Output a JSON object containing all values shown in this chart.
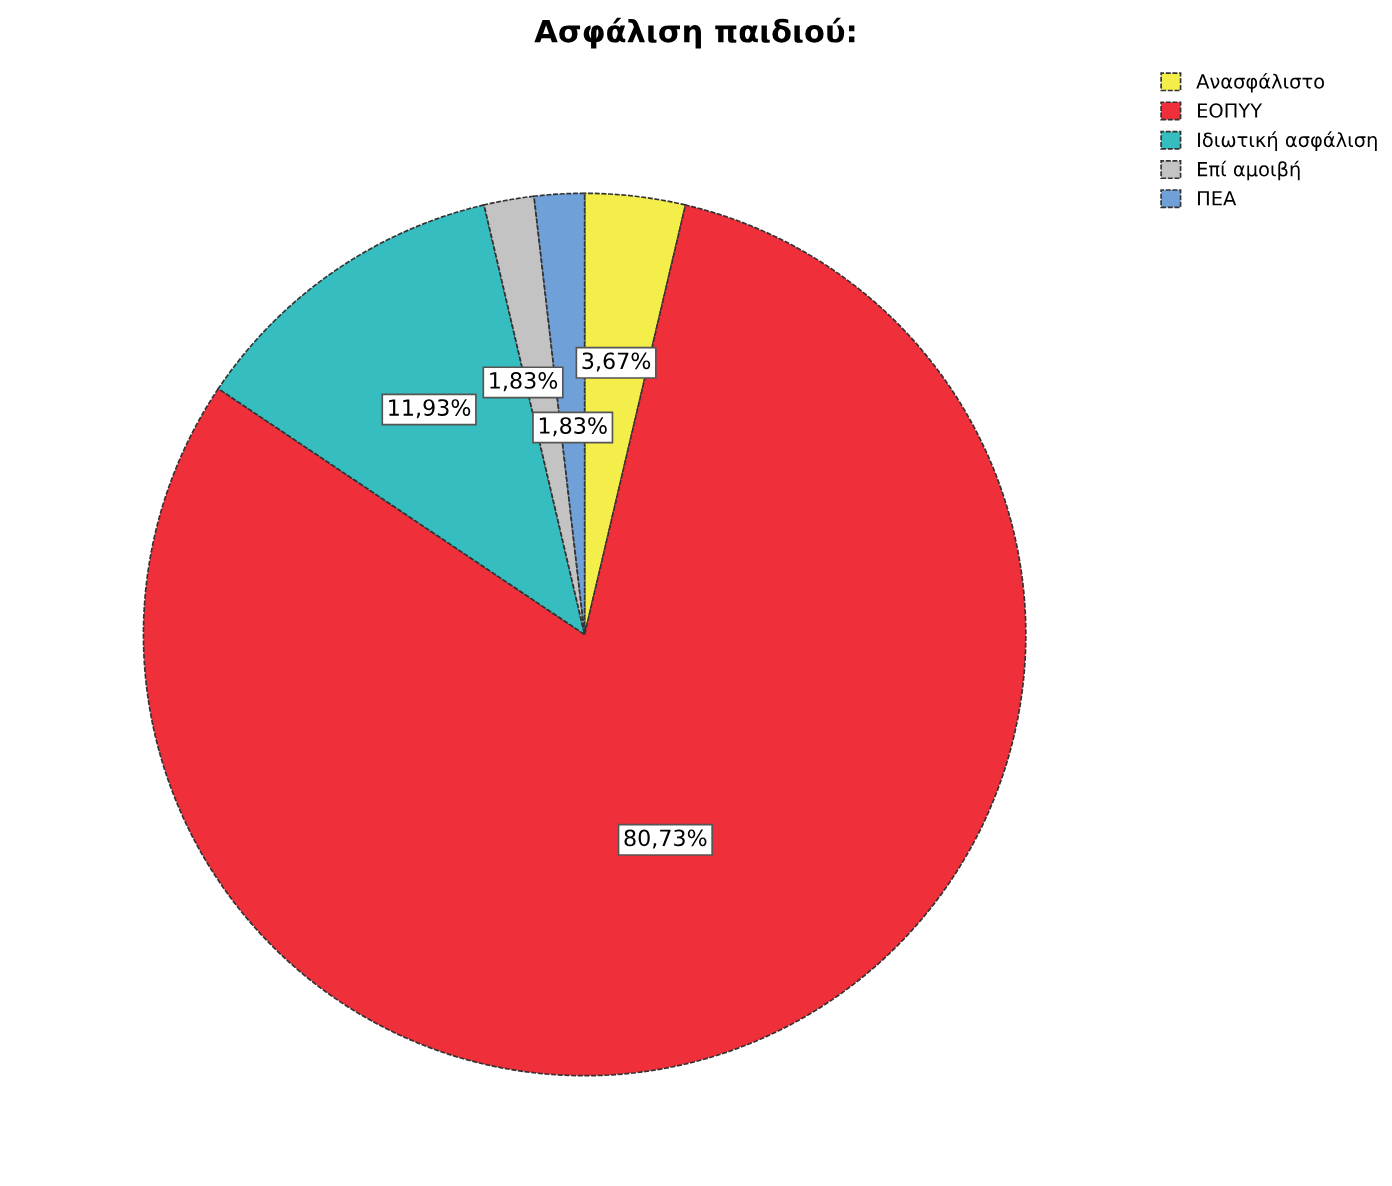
{
  "chart_data": {
    "type": "pie",
    "title": "Ασφάλιση παιδιού:",
    "categories": [
      "Ανασφάλιστο",
      "ΕΟΠΥΥ",
      "Ιδιωτική ασφάλιση",
      "Επί αμοιβή",
      "ΠΕΑ"
    ],
    "values": [
      3.67,
      80.73,
      11.93,
      1.83,
      1.83
    ],
    "value_labels": [
      "3,67%",
      "80,73%",
      "11,93%",
      "1,83%",
      "1,83%"
    ],
    "colors": [
      "#f4ee4a",
      "#ef2f3a",
      "#35bdbf",
      "#c3c3c3",
      "#6fa1d8"
    ],
    "legend": "top right"
  }
}
